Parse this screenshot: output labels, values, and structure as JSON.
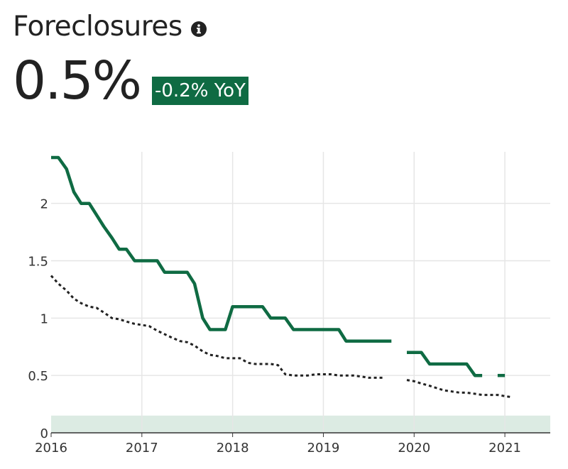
{
  "header": {
    "title": "Foreclosures",
    "value": "0.5%",
    "change_badge": "-0.2% YoY",
    "icon": "info-icon"
  },
  "colors": {
    "primary_series": "#0f6b43",
    "comparison_series": "#222222",
    "badge_bg": "#0f6b43",
    "band_fill": "#dcebe3",
    "grid": "#e6e6e6"
  },
  "chart_data": {
    "type": "line",
    "title": "Foreclosures",
    "xlabel": "",
    "ylabel": "",
    "xlim": [
      2016.0,
      2021.5
    ],
    "ylim": [
      0,
      2.4
    ],
    "x_ticks": [
      2016,
      2017,
      2018,
      2019,
      2020,
      2021
    ],
    "x_tick_labels": [
      "2016",
      "2017",
      "2018",
      "2019",
      "2020",
      "2021"
    ],
    "y_ticks": [
      0,
      0.5,
      1,
      1.5,
      2
    ],
    "y_tick_labels": [
      "0",
      "0.5",
      "1",
      "1.5",
      "2"
    ],
    "grid": true,
    "reference_band": [
      0,
      0.15
    ],
    "series": [
      {
        "style": "solid",
        "segments": [
          [
            [
              2016.0,
              2.4
            ],
            [
              2016.08,
              2.4
            ],
            [
              2016.17,
              2.3
            ],
            [
              2016.25,
              2.1
            ],
            [
              2016.33,
              2.0
            ],
            [
              2016.42,
              2.0
            ],
            [
              2016.5,
              1.9
            ],
            [
              2016.58,
              1.8
            ],
            [
              2016.67,
              1.7
            ],
            [
              2016.75,
              1.6
            ],
            [
              2016.83,
              1.6
            ],
            [
              2016.92,
              1.5
            ],
            [
              2017.0,
              1.5
            ],
            [
              2017.08,
              1.5
            ],
            [
              2017.17,
              1.5
            ],
            [
              2017.25,
              1.4
            ],
            [
              2017.33,
              1.4
            ],
            [
              2017.42,
              1.4
            ],
            [
              2017.5,
              1.4
            ],
            [
              2017.58,
              1.3
            ],
            [
              2017.67,
              1.0
            ],
            [
              2017.75,
              0.9
            ],
            [
              2017.83,
              0.9
            ],
            [
              2017.92,
              0.9
            ],
            [
              2018.0,
              1.1
            ],
            [
              2018.08,
              1.1
            ],
            [
              2018.17,
              1.1
            ],
            [
              2018.25,
              1.1
            ],
            [
              2018.33,
              1.1
            ],
            [
              2018.42,
              1.0
            ],
            [
              2018.5,
              1.0
            ],
            [
              2018.58,
              1.0
            ],
            [
              2018.67,
              0.9
            ],
            [
              2018.75,
              0.9
            ],
            [
              2018.83,
              0.9
            ],
            [
              2018.92,
              0.9
            ],
            [
              2019.0,
              0.9
            ],
            [
              2019.08,
              0.9
            ],
            [
              2019.17,
              0.9
            ],
            [
              2019.25,
              0.8
            ],
            [
              2019.33,
              0.8
            ],
            [
              2019.42,
              0.8
            ],
            [
              2019.5,
              0.8
            ],
            [
              2019.58,
              0.8
            ],
            [
              2019.67,
              0.8
            ],
            [
              2019.75,
              0.8
            ]
          ],
          [
            [
              2019.92,
              0.7
            ],
            [
              2020.0,
              0.7
            ],
            [
              2020.08,
              0.7
            ],
            [
              2020.17,
              0.6
            ],
            [
              2020.25,
              0.6
            ],
            [
              2020.33,
              0.6
            ],
            [
              2020.42,
              0.6
            ],
            [
              2020.5,
              0.6
            ],
            [
              2020.58,
              0.6
            ],
            [
              2020.67,
              0.5
            ],
            [
              2020.75,
              0.5
            ]
          ],
          [
            [
              2020.92,
              0.5
            ],
            [
              2021.0,
              0.5
            ]
          ]
        ]
      },
      {
        "style": "dotted",
        "segments": [
          [
            [
              2016.0,
              1.37
            ],
            [
              2016.08,
              1.3
            ],
            [
              2016.17,
              1.24
            ],
            [
              2016.25,
              1.17
            ],
            [
              2016.33,
              1.13
            ],
            [
              2016.42,
              1.1
            ],
            [
              2016.5,
              1.09
            ],
            [
              2016.58,
              1.05
            ],
            [
              2016.67,
              1.0
            ],
            [
              2016.75,
              0.99
            ],
            [
              2016.83,
              0.97
            ],
            [
              2016.92,
              0.95
            ],
            [
              2017.0,
              0.94
            ],
            [
              2017.08,
              0.93
            ],
            [
              2017.17,
              0.89
            ],
            [
              2017.25,
              0.86
            ],
            [
              2017.33,
              0.83
            ],
            [
              2017.42,
              0.8
            ],
            [
              2017.5,
              0.79
            ],
            [
              2017.58,
              0.76
            ],
            [
              2017.67,
              0.71
            ],
            [
              2017.75,
              0.68
            ],
            [
              2017.83,
              0.67
            ],
            [
              2017.92,
              0.65
            ],
            [
              2018.0,
              0.65
            ],
            [
              2018.08,
              0.65
            ],
            [
              2018.17,
              0.61
            ],
            [
              2018.25,
              0.6
            ],
            [
              2018.33,
              0.6
            ],
            [
              2018.42,
              0.6
            ],
            [
              2018.5,
              0.59
            ],
            [
              2018.58,
              0.51
            ],
            [
              2018.67,
              0.5
            ],
            [
              2018.75,
              0.5
            ],
            [
              2018.83,
              0.5
            ],
            [
              2018.92,
              0.51
            ],
            [
              2019.0,
              0.51
            ],
            [
              2019.08,
              0.51
            ],
            [
              2019.17,
              0.5
            ],
            [
              2019.25,
              0.5
            ],
            [
              2019.33,
              0.5
            ],
            [
              2019.42,
              0.49
            ],
            [
              2019.5,
              0.48
            ],
            [
              2019.58,
              0.48
            ],
            [
              2019.67,
              0.48
            ]
          ],
          [
            [
              2019.92,
              0.46
            ],
            [
              2020.0,
              0.45
            ],
            [
              2020.08,
              0.43
            ],
            [
              2020.17,
              0.41
            ],
            [
              2020.25,
              0.39
            ],
            [
              2020.33,
              0.37
            ],
            [
              2020.42,
              0.36
            ],
            [
              2020.5,
              0.35
            ],
            [
              2020.58,
              0.35
            ],
            [
              2020.67,
              0.34
            ],
            [
              2020.75,
              0.33
            ],
            [
              2020.83,
              0.33
            ],
            [
              2020.92,
              0.33
            ],
            [
              2021.0,
              0.32
            ],
            [
              2021.08,
              0.31
            ]
          ]
        ]
      }
    ]
  }
}
